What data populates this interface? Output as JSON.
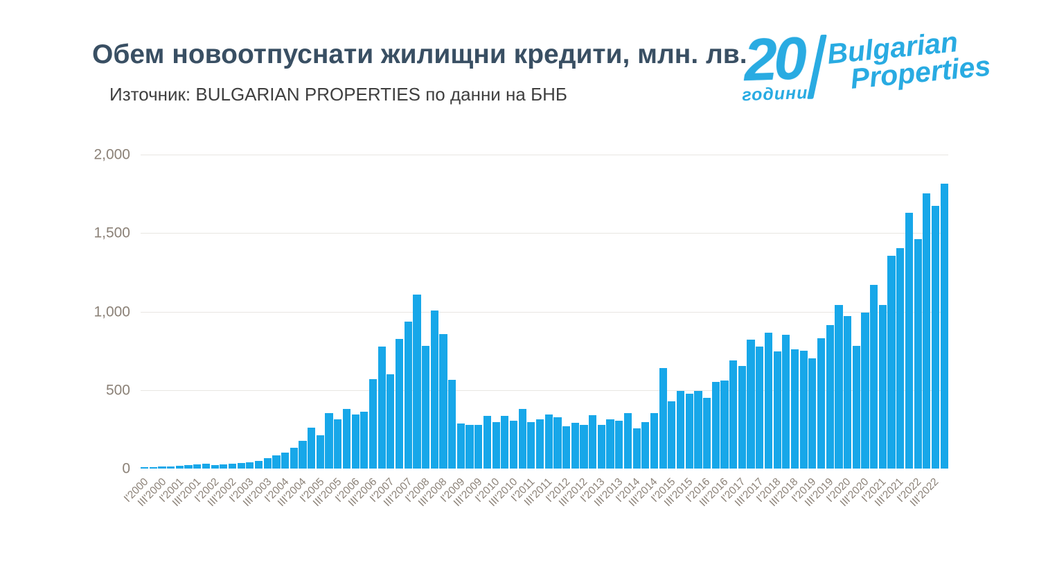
{
  "header": {
    "title": "Обем новоотпуснати жилищни кредити, млн. лв.",
    "source_line": "Източник: BULGARIAN PROPERTIES по данни на БНБ"
  },
  "logo": {
    "number": "20",
    "years_word": "години",
    "brand_line1": "Bulgarian",
    "brand_line2": "Properties"
  },
  "colors": {
    "bar": "#17a7e9",
    "logo_blue": "#29abe2",
    "title_text": "#394f63",
    "axis_text": "#8b8177",
    "gridline": "#e8e6e2"
  },
  "chart_data": {
    "type": "bar",
    "title": "Обем новоотпуснати жилищни кредити, млн. лв.",
    "source": "Източник: BULGARIAN PROPERTIES по данни на БНБ",
    "unit": "млн. лв.",
    "ylim": [
      0,
      2000
    ],
    "yticks": [
      0,
      500,
      1000,
      1500,
      2000
    ],
    "ytick_labels": [
      "0",
      "500",
      "1,000",
      "1,500",
      "2,000"
    ],
    "grid": "horizontal only",
    "legend": "none",
    "xtick_rule": "every second quarter labeled (I and III), rotated 45°",
    "categories": [
      "I'2000",
      "II'2000",
      "III'2000",
      "IV'2000",
      "I'2001",
      "II'2001",
      "III'2001",
      "IV'2001",
      "I'2002",
      "II'2002",
      "III'2002",
      "IV'2002",
      "I'2003",
      "II'2003",
      "III'2003",
      "IV'2003",
      "I'2004",
      "II'2004",
      "III'2004",
      "IV'2004",
      "I'2005",
      "II'2005",
      "III'2005",
      "IV'2005",
      "I'2006",
      "II'2006",
      "III'2006",
      "IV'2006",
      "I'2007",
      "II'2007",
      "III'2007",
      "IV'2007",
      "I'2008",
      "II'2008",
      "III'2008",
      "IV'2008",
      "I'2009",
      "II'2009",
      "III'2009",
      "IV'2009",
      "I'2010",
      "II'2010",
      "III'2010",
      "IV'2010",
      "I'2011",
      "II'2011",
      "III'2011",
      "IV'2011",
      "I'2012",
      "II'2012",
      "III'2012",
      "IV'2012",
      "I'2013",
      "II'2013",
      "III'2013",
      "IV'2013",
      "I'2014",
      "II'2014",
      "III'2014",
      "IV'2014",
      "I'2015",
      "II'2015",
      "III'2015",
      "IV'2015",
      "I'2016",
      "II'2016",
      "III'2016",
      "IV'2016",
      "I'2017",
      "II'2017",
      "III'2017",
      "IV'2017",
      "I'2018",
      "II'2018",
      "III'2018",
      "IV'2018",
      "I'2019",
      "II'2019",
      "III'2019",
      "IV'2019",
      "I'2020",
      "II'2020",
      "III'2020",
      "IV'2020",
      "I'2021",
      "II'2021",
      "III'2021",
      "IV'2021",
      "I'2022",
      "II'2022",
      "III'2022",
      "IV'2022"
    ],
    "values": [
      8,
      10,
      12,
      14,
      16,
      20,
      28,
      30,
      24,
      26,
      30,
      34,
      40,
      50,
      65,
      85,
      100,
      133,
      175,
      260,
      210,
      355,
      315,
      380,
      345,
      360,
      570,
      775,
      600,
      825,
      935,
      1110,
      780,
      1005,
      855,
      565,
      285,
      278,
      278,
      335,
      295,
      335,
      305,
      378,
      295,
      315,
      345,
      325,
      270,
      290,
      278,
      338,
      278,
      312,
      303,
      355,
      256,
      295,
      355,
      640,
      430,
      495,
      475,
      495,
      452,
      553,
      560,
      690,
      655,
      820,
      775,
      865,
      745,
      850,
      760,
      750,
      700,
      830,
      912,
      1040,
      973,
      783,
      992,
      1170,
      1040,
      1355,
      1405,
      1630,
      1460,
      1755,
      1675,
      1815
    ]
  }
}
